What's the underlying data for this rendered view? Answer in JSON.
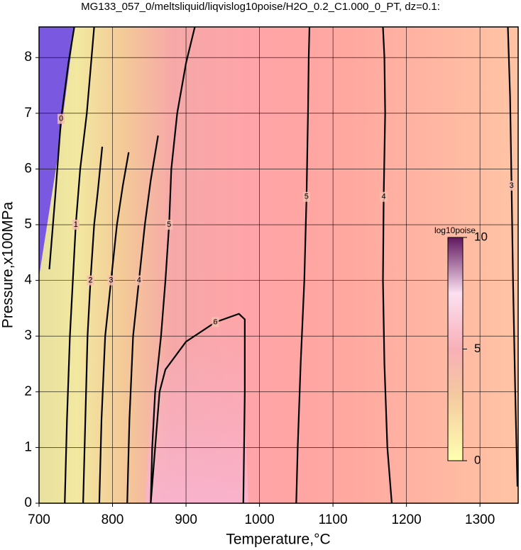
{
  "chart_data": {
    "type": "contour",
    "title": "MG133_057_0/meltsliquid/liqvislog10poise/H2O_0.2_C1.000_0_PT, dz=0.1:",
    "x_label": "Temperature,°C",
    "y_label": "Pressure,x100MPa",
    "xlim": [
      700,
      1352
    ],
    "ylim": [
      0,
      8.55
    ],
    "xticks": [
      700,
      800,
      900,
      1000,
      1100,
      1200,
      1300
    ],
    "yticks": [
      0,
      1,
      2,
      3,
      4,
      5,
      6,
      7,
      8
    ],
    "grid": true,
    "contours": [
      {
        "level": 0,
        "x": [
          714,
          722,
          730,
          740,
          748
        ],
        "y": [
          4.2,
          5.5,
          6.9,
          7.9,
          8.55
        ]
      },
      {
        "level": 1,
        "x": [
          735,
          738,
          742,
          746,
          750,
          756,
          765,
          775
        ],
        "y": [
          0,
          1.5,
          3,
          4,
          5,
          6,
          7,
          8.55
        ]
      },
      {
        "level": 2,
        "x": [
          760,
          763,
          766,
          770,
          775,
          780,
          786
        ],
        "y": [
          0,
          1.5,
          3,
          4,
          5,
          5.6,
          6.4
        ]
      },
      {
        "level": 3,
        "x": [
          782,
          785,
          790,
          798,
          806,
          814,
          822
        ],
        "y": [
          0,
          1.5,
          3,
          4,
          5,
          5.7,
          6.3
        ]
      },
      {
        "level": 4,
        "x": [
          820,
          823,
          828,
          836,
          844,
          852,
          862
        ],
        "y": [
          0,
          1.5,
          3,
          4,
          5,
          5.8,
          6.6
        ]
      },
      {
        "level": 5,
        "x": [
          852,
          854,
          858,
          866,
          872,
          877,
          880,
          888,
          900,
          912
        ],
        "y": [
          0,
          1,
          2,
          3,
          4,
          5,
          6,
          7,
          7.9,
          8.55
        ]
      },
      {
        "level": 6,
        "x": [
          852,
          858,
          864,
          872,
          900,
          940,
          972,
          980,
          980,
          978
        ],
        "y": [
          0,
          1,
          2,
          2.4,
          2.9,
          3.25,
          3.4,
          3.3,
          2,
          0
        ]
      },
      {
        "level": 5,
        "x": [
          1050,
          1052,
          1056,
          1061,
          1064,
          1066,
          1067,
          1068
        ],
        "y": [
          0,
          1,
          2.5,
          4,
          5.5,
          7,
          8,
          8.55
        ]
      },
      {
        "level": 4,
        "x": [
          1180,
          1174,
          1170,
          1168,
          1169,
          1171,
          1170,
          1168
        ],
        "y": [
          0,
          1,
          2.5,
          4,
          5.5,
          7,
          8,
          8.55
        ]
      },
      {
        "level": 3,
        "x": [
          1351,
          1348,
          1345,
          1343,
          1341,
          1338
        ],
        "y": [
          0.3,
          2,
          4,
          5.7,
          7.3,
          8.55
        ]
      }
    ],
    "colorbar": {
      "label": "log10poise",
      "lim": [
        0,
        10
      ],
      "ticks": [
        0,
        5,
        10
      ]
    }
  }
}
